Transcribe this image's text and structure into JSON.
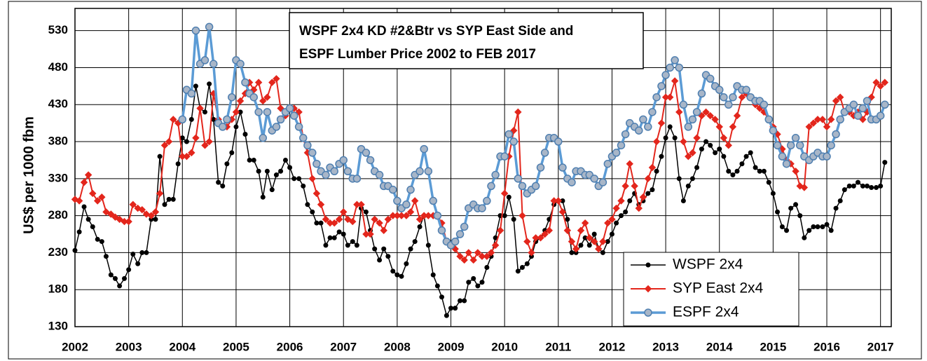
{
  "chart_data": {
    "type": "line",
    "title": [
      "WSPF 2x4 KD #2&Btr vs SYP East Side and",
      "ESPF Lumber Price 2002 to FEB 2017"
    ],
    "y_label": "US$ per 1000 fbm",
    "xlim": [
      2002,
      2017.2
    ],
    "xticks": [
      2002,
      2003,
      2004,
      2005,
      2006,
      2007,
      2008,
      2009,
      2010,
      2011,
      2012,
      2013,
      2014,
      2015,
      2016,
      2017
    ],
    "ylim": [
      130,
      560
    ],
    "yticks": [
      130,
      180,
      230,
      280,
      330,
      380,
      430,
      480,
      530
    ],
    "grid": true,
    "legend": "lower right",
    "x": [
      2002,
      2002.08,
      2002.17,
      2002.25,
      2002.33,
      2002.42,
      2002.5,
      2002.58,
      2002.67,
      2002.75,
      2002.83,
      2002.92,
      2003,
      2003.08,
      2003.17,
      2003.25,
      2003.33,
      2003.42,
      2003.5,
      2003.58,
      2003.67,
      2003.75,
      2003.83,
      2003.92,
      2004,
      2004.08,
      2004.17,
      2004.25,
      2004.33,
      2004.42,
      2004.5,
      2004.58,
      2004.67,
      2004.75,
      2004.83,
      2004.92,
      2005,
      2005.08,
      2005.17,
      2005.25,
      2005.33,
      2005.42,
      2005.5,
      2005.58,
      2005.67,
      2005.75,
      2005.83,
      2005.92,
      2006,
      2006.08,
      2006.17,
      2006.25,
      2006.33,
      2006.42,
      2006.5,
      2006.58,
      2006.67,
      2006.75,
      2006.83,
      2006.92,
      2007,
      2007.08,
      2007.17,
      2007.25,
      2007.33,
      2007.42,
      2007.5,
      2007.58,
      2007.67,
      2007.75,
      2007.83,
      2007.92,
      2008,
      2008.08,
      2008.17,
      2008.25,
      2008.33,
      2008.42,
      2008.5,
      2008.58,
      2008.67,
      2008.75,
      2008.83,
      2008.92,
      2009,
      2009.08,
      2009.17,
      2009.25,
      2009.33,
      2009.42,
      2009.5,
      2009.58,
      2009.67,
      2009.75,
      2009.83,
      2009.92,
      2010,
      2010.08,
      2010.17,
      2010.25,
      2010.33,
      2010.42,
      2010.5,
      2010.58,
      2010.67,
      2010.75,
      2010.83,
      2010.92,
      2011,
      2011.08,
      2011.17,
      2011.25,
      2011.33,
      2011.42,
      2011.5,
      2011.58,
      2011.67,
      2011.75,
      2011.83,
      2011.92,
      2012,
      2012.08,
      2012.17,
      2012.25,
      2012.33,
      2012.42,
      2012.5,
      2012.58,
      2012.67,
      2012.75,
      2012.83,
      2012.92,
      2013,
      2013.08,
      2013.17,
      2013.25,
      2013.33,
      2013.42,
      2013.5,
      2013.58,
      2013.67,
      2013.75,
      2013.83,
      2013.92,
      2014,
      2014.08,
      2014.17,
      2014.25,
      2014.33,
      2014.42,
      2014.5,
      2014.58,
      2014.67,
      2014.75,
      2014.83,
      2014.92,
      2015,
      2015.08,
      2015.17,
      2015.25,
      2015.33,
      2015.42,
      2015.5,
      2015.58,
      2015.67,
      2015.75,
      2015.83,
      2015.92,
      2016,
      2016.08,
      2016.17,
      2016.25,
      2016.33,
      2016.42,
      2016.5,
      2016.58,
      2016.67,
      2016.75,
      2016.83,
      2016.92,
      2017,
      2017.08
    ],
    "series": [
      {
        "name": "WSPF 2x4",
        "color": "#000000",
        "marker": "circle",
        "values": [
          233,
          258,
          292,
          275,
          265,
          248,
          245,
          225,
          200,
          195,
          185,
          195,
          207,
          228,
          215,
          230,
          230,
          275,
          275,
          360,
          295,
          302,
          302,
          350,
          385,
          380,
          410,
          455,
          425,
          420,
          458,
          410,
          325,
          320,
          350,
          365,
          400,
          420,
          390,
          355,
          355,
          340,
          305,
          340,
          315,
          335,
          340,
          355,
          345,
          330,
          330,
          320,
          295,
          285,
          270,
          270,
          240,
          250,
          250,
          258,
          255,
          240,
          245,
          240,
          290,
          285,
          260,
          235,
          220,
          235,
          225,
          205,
          200,
          198,
          215,
          235,
          245,
          265,
          280,
          240,
          200,
          185,
          170,
          145,
          155,
          155,
          165,
          165,
          190,
          195,
          185,
          190,
          210,
          225,
          250,
          280,
          280,
          305,
          275,
          205,
          210,
          215,
          225,
          245,
          250,
          260,
          275,
          295,
          300,
          300,
          275,
          230,
          230,
          240,
          250,
          240,
          255,
          235,
          230,
          245,
          255,
          270,
          280,
          285,
          300,
          310,
          295,
          300,
          310,
          315,
          340,
          360,
          385,
          400,
          385,
          330,
          300,
          320,
          330,
          345,
          370,
          380,
          375,
          365,
          370,
          360,
          340,
          335,
          340,
          350,
          360,
          365,
          345,
          340,
          340,
          325,
          310,
          285,
          265,
          260,
          290,
          295,
          280,
          250,
          260,
          265,
          265,
          265,
          268,
          260,
          290,
          300,
          315,
          320,
          320,
          325,
          320,
          320,
          318,
          318,
          320,
          352
        ]
      },
      {
        "name": "SYP East 2x4",
        "color": "#e3261c",
        "marker": "diamond",
        "values": [
          302,
          300,
          325,
          335,
          310,
          300,
          305,
          285,
          282,
          278,
          275,
          272,
          272,
          295,
          290,
          288,
          282,
          280,
          285,
          310,
          375,
          380,
          410,
          405,
          360,
          360,
          365,
          385,
          425,
          375,
          380,
          445,
          410,
          400,
          400,
          410,
          420,
          435,
          445,
          460,
          450,
          460,
          435,
          440,
          460,
          465,
          425,
          415,
          425,
          425,
          420,
          385,
          365,
          330,
          310,
          295,
          275,
          270,
          270,
          275,
          285,
          275,
          272,
          295,
          295,
          255,
          255,
          275,
          270,
          260,
          275,
          280,
          280,
          280,
          280,
          285,
          300,
          275,
          280,
          280,
          280,
          280,
          270,
          245,
          240,
          235,
          225,
          220,
          230,
          220,
          230,
          225,
          225,
          230,
          240,
          260,
          310,
          360,
          395,
          420,
          280,
          245,
          230,
          250,
          250,
          255,
          260,
          300,
          300,
          285,
          260,
          245,
          235,
          260,
          270,
          250,
          245,
          235,
          245,
          270,
          275,
          290,
          300,
          320,
          350,
          320,
          290,
          305,
          330,
          345,
          380,
          405,
          440,
          440,
          462,
          420,
          380,
          360,
          365,
          385,
          415,
          420,
          415,
          410,
          400,
          385,
          375,
          400,
          415,
          440,
          445,
          440,
          430,
          425,
          420,
          410,
          400,
          390,
          370,
          355,
          350,
          340,
          320,
          318,
          400,
          405,
          410,
          410,
          400,
          410,
          435,
          440,
          420,
          420,
          415,
          420,
          410,
          420,
          440,
          460,
          455,
          460
        ]
      },
      {
        "name": "ESPF 2x4",
        "color": "#5b9bd5",
        "marker": "circle-large",
        "values": [
          null,
          null,
          null,
          null,
          null,
          null,
          null,
          null,
          null,
          null,
          null,
          null,
          null,
          null,
          null,
          null,
          null,
          null,
          null,
          null,
          null,
          null,
          null,
          null,
          410,
          450,
          445,
          530,
          485,
          490,
          535,
          485,
          405,
          400,
          410,
          440,
          490,
          485,
          460,
          445,
          440,
          420,
          385,
          420,
          395,
          400,
          410,
          420,
          425,
          415,
          400,
          385,
          375,
          365,
          350,
          340,
          335,
          345,
          340,
          350,
          355,
          340,
          330,
          330,
          370,
          365,
          355,
          340,
          335,
          320,
          320,
          315,
          300,
          290,
          295,
          315,
          335,
          340,
          370,
          340,
          300,
          280,
          260,
          245,
          240,
          245,
          255,
          265,
          290,
          295,
          290,
          290,
          300,
          320,
          335,
          360,
          360,
          390,
          380,
          330,
          320,
          310,
          315,
          320,
          345,
          365,
          385,
          385,
          380,
          345,
          330,
          325,
          340,
          340,
          335,
          335,
          330,
          320,
          325,
          350,
          360,
          365,
          375,
          390,
          405,
          400,
          395,
          410,
          400,
          420,
          440,
          455,
          470,
          480,
          490,
          480,
          430,
          400,
          410,
          420,
          445,
          470,
          465,
          455,
          450,
          440,
          430,
          440,
          455,
          450,
          450,
          440,
          435,
          435,
          430,
          410,
          395,
          375,
          360,
          350,
          375,
          385,
          375,
          360,
          355,
          360,
          365,
          360,
          360,
          375,
          390,
          410,
          420,
          425,
          430,
          415,
          425,
          435,
          410,
          410,
          415,
          430
        ]
      }
    ]
  }
}
